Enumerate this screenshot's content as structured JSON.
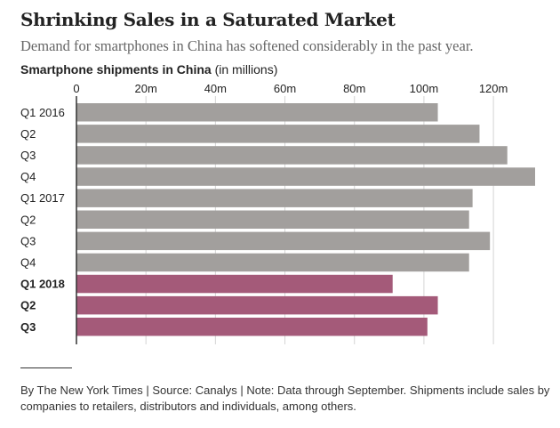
{
  "header": {
    "title": "Shrinking Sales in a Saturated Market",
    "subtitle": "Demand for smartphones in China has softened considerably in the past year.",
    "chart_label_bold": "Smartphone shipments in China",
    "chart_label_unit": "(in millions)"
  },
  "footer": {
    "source": "By The New York Times | Source: Canalys | Note: Data through September. Shipments include sales by companies to retailers, distributors and individuals, among others."
  },
  "colors": {
    "past": "#a29f9d",
    "recent": "#a45a79",
    "grid": "#d4d4d4",
    "axis": "#333333",
    "text": "#222222"
  },
  "chart_data": {
    "type": "bar",
    "orientation": "horizontal",
    "title": "Smartphone shipments in China",
    "xlabel": "(in millions)",
    "ylabel": "",
    "xlim": [
      0,
      132
    ],
    "x_ticks": [
      {
        "value": 0,
        "label": "0"
      },
      {
        "value": 20,
        "label": "20m"
      },
      {
        "value": 40,
        "label": "40m"
      },
      {
        "value": 60,
        "label": "60m"
      },
      {
        "value": 80,
        "label": "80m"
      },
      {
        "value": 100,
        "label": "100m"
      },
      {
        "value": 120,
        "label": "120m"
      }
    ],
    "categories": [
      "Q1 2016",
      "Q2",
      "Q3",
      "Q4",
      "Q1 2017",
      "Q2",
      "Q3",
      "Q4",
      "Q1 2018",
      "Q2",
      "Q3"
    ],
    "values": [
      104,
      116,
      124,
      132,
      114,
      113,
      119,
      113,
      91,
      104,
      101
    ],
    "highlight": [
      false,
      false,
      false,
      false,
      false,
      false,
      false,
      false,
      true,
      true,
      true
    ],
    "grid": true
  }
}
